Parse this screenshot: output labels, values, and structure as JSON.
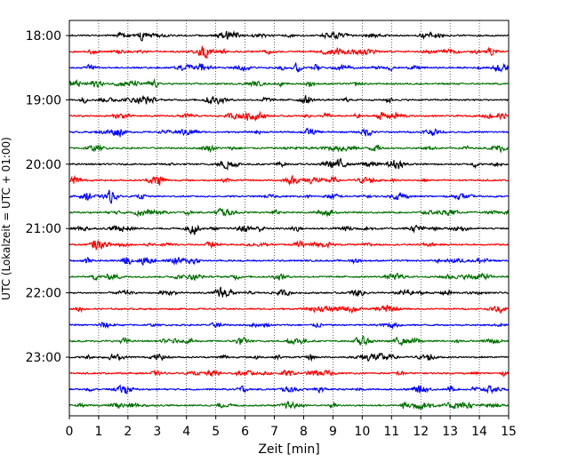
{
  "chart_data": {
    "type": "line",
    "title": "",
    "xlabel": "Zeit  [min]",
    "ylabel": "UTC (Lokalzeit = UTC + 01:00)",
    "xlim": [
      0,
      15
    ],
    "x_ticks": [
      "0",
      "1",
      "2",
      "3",
      "4",
      "5",
      "6",
      "7",
      "8",
      "9",
      "10",
      "11",
      "12",
      "13",
      "14",
      "15"
    ],
    "y_ticks": [
      "18:00",
      "19:00",
      "20:00",
      "21:00",
      "22:00",
      "23:00"
    ],
    "grid": "vertical dotted",
    "trace_minutes": 15,
    "trace_colors": [
      "#000000",
      "#ff0000",
      "#0000ff",
      "#007000"
    ],
    "traces": [
      {
        "start": "18:00"
      },
      {
        "start": "18:15"
      },
      {
        "start": "18:30"
      },
      {
        "start": "18:45"
      },
      {
        "start": "19:00"
      },
      {
        "start": "19:15"
      },
      {
        "start": "19:30"
      },
      {
        "start": "19:45"
      },
      {
        "start": "20:00"
      },
      {
        "start": "20:15"
      },
      {
        "start": "20:30"
      },
      {
        "start": "20:45"
      },
      {
        "start": "21:00"
      },
      {
        "start": "21:15"
      },
      {
        "start": "21:30"
      },
      {
        "start": "21:45"
      },
      {
        "start": "22:00"
      },
      {
        "start": "22:15"
      },
      {
        "start": "22:30"
      },
      {
        "start": "22:45"
      },
      {
        "start": "23:00"
      },
      {
        "start": "23:15"
      },
      {
        "start": "23:30"
      },
      {
        "start": "23:45"
      }
    ]
  }
}
